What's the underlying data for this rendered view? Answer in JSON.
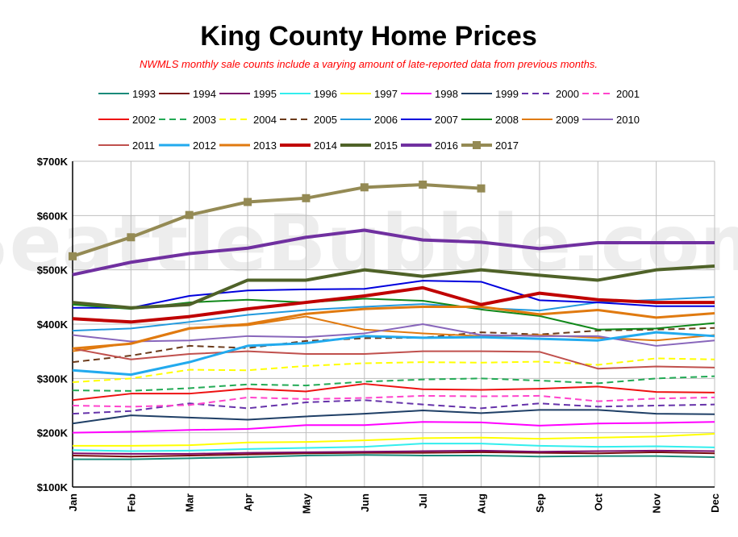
{
  "chart_data": {
    "type": "line",
    "title": "King County Home Prices",
    "subtitle": "NWMLS monthly sale counts include a varying amount of late-reported  data  from previous months.",
    "watermark": "SeattleBubble.com",
    "categories": [
      "Jan",
      "Feb",
      "Mar",
      "Apr",
      "May",
      "Jun",
      "Jul",
      "Aug",
      "Sep",
      "Oct",
      "Nov",
      "Dec"
    ],
    "ylim": [
      100000,
      700000
    ],
    "yticks": [
      {
        "value": 100000,
        "label": "$100K"
      },
      {
        "value": 200000,
        "label": "$200K"
      },
      {
        "value": 300000,
        "label": "$300K"
      },
      {
        "value": 400000,
        "label": "$400K"
      },
      {
        "value": 500000,
        "label": "$500K"
      },
      {
        "value": 600000,
        "label": "$600K"
      },
      {
        "value": 700000,
        "label": "$700K"
      }
    ],
    "grid": true,
    "legend_position": "top",
    "series": [
      {
        "name": "1993",
        "color": "#1a8a7a",
        "dash": false,
        "width": 2,
        "values": [
          151000,
          151000,
          153000,
          155000,
          158000,
          159000,
          158000,
          158000,
          156000,
          157000,
          157000,
          155000
        ]
      },
      {
        "name": "1994",
        "color": "#7a1010",
        "dash": false,
        "width": 2,
        "values": [
          158000,
          156000,
          158000,
          160000,
          162000,
          163000,
          163000,
          164000,
          163000,
          162000,
          164000,
          162000
        ]
      },
      {
        "name": "1995",
        "color": "#7a0a6a",
        "dash": false,
        "width": 2,
        "values": [
          162000,
          161000,
          161000,
          163000,
          164000,
          165000,
          166000,
          167000,
          165000,
          166000,
          167000,
          166000
        ]
      },
      {
        "name": "1996",
        "color": "#33eeee",
        "dash": false,
        "width": 2,
        "values": [
          168000,
          166000,
          167000,
          170000,
          172000,
          174000,
          180000,
          180000,
          176000,
          174000,
          175000,
          173000
        ]
      },
      {
        "name": "1997",
        "color": "#ffff00",
        "dash": false,
        "width": 2,
        "values": [
          176000,
          176000,
          177000,
          182000,
          183000,
          186000,
          190000,
          191000,
          189000,
          191000,
          193000,
          198000
        ]
      },
      {
        "name": "1998",
        "color": "#ff00ff",
        "dash": false,
        "width": 2,
        "values": [
          200000,
          202000,
          205000,
          207000,
          214000,
          214000,
          220000,
          219000,
          213000,
          217000,
          218000,
          220000
        ]
      },
      {
        "name": "1999",
        "color": "#1f3f66",
        "dash": false,
        "width": 2,
        "values": [
          217000,
          232000,
          228000,
          224000,
          230000,
          235000,
          241000,
          236000,
          242000,
          242000,
          235000,
          234000
        ]
      },
      {
        "name": "2000",
        "color": "#6633aa",
        "dash": true,
        "width": 2,
        "values": [
          235000,
          240000,
          254000,
          245000,
          256000,
          260000,
          252000,
          245000,
          254000,
          248000,
          250000,
          252000
        ]
      },
      {
        "name": "2001",
        "color": "#ff44cc",
        "dash": true,
        "width": 2,
        "values": [
          250000,
          248000,
          251000,
          265000,
          262000,
          264000,
          268000,
          267000,
          268000,
          258000,
          263000,
          265000
        ]
      },
      {
        "name": "2002",
        "color": "#ee1111",
        "dash": false,
        "width": 2,
        "values": [
          260000,
          272000,
          272000,
          281000,
          276000,
          290000,
          280000,
          279000,
          281000,
          285000,
          275000,
          274000
        ]
      },
      {
        "name": "2003",
        "color": "#22aa55",
        "dash": true,
        "width": 2,
        "values": [
          278000,
          277000,
          282000,
          289000,
          287000,
          294000,
          298000,
          300000,
          296000,
          291000,
          300000,
          304000
        ]
      },
      {
        "name": "2004",
        "color": "#ffff00",
        "dash": true,
        "width": 2,
        "values": [
          293000,
          300000,
          316000,
          315000,
          323000,
          328000,
          330000,
          329000,
          331000,
          325000,
          337000,
          335000
        ]
      },
      {
        "name": "2005",
        "color": "#6b3a1a",
        "dash": true,
        "width": 2,
        "values": [
          330000,
          342000,
          360000,
          356000,
          369000,
          374000,
          375000,
          385000,
          381000,
          388000,
          390000,
          393000
        ]
      },
      {
        "name": "2006",
        "color": "#2299dd",
        "dash": false,
        "width": 2,
        "values": [
          388000,
          392000,
          404000,
          417000,
          426000,
          432000,
          437000,
          430000,
          425000,
          440000,
          445000,
          450000
        ]
      },
      {
        "name": "2007",
        "color": "#0000dd",
        "dash": false,
        "width": 2,
        "values": [
          430000,
          430000,
          452000,
          462000,
          464000,
          465000,
          480000,
          478000,
          444000,
          440000,
          433000,
          433000
        ]
      },
      {
        "name": "2008",
        "color": "#11881a",
        "dash": false,
        "width": 2,
        "values": [
          436000,
          428000,
          440000,
          445000,
          440000,
          447000,
          443000,
          427000,
          415000,
          390000,
          392000,
          402000
        ]
      },
      {
        "name": "2009",
        "color": "#e07a10",
        "dash": false,
        "width": 2,
        "values": [
          350000,
          365000,
          393000,
          398000,
          414000,
          390000,
          383000,
          378000,
          380000,
          375000,
          370000,
          380000
        ]
      },
      {
        "name": "2010",
        "color": "#8866bb",
        "dash": false,
        "width": 2,
        "values": [
          380000,
          368000,
          370000,
          378000,
          376000,
          383000,
          400000,
          380000,
          378000,
          378000,
          360000,
          370000
        ]
      },
      {
        "name": "2011",
        "color": "#c0504d",
        "dash": false,
        "width": 2,
        "values": [
          355000,
          335000,
          345000,
          350000,
          345000,
          345000,
          350000,
          350000,
          349000,
          318000,
          322000,
          320000
        ]
      },
      {
        "name": "2012",
        "color": "#22aaee",
        "dash": false,
        "width": 3,
        "values": [
          315000,
          307000,
          330000,
          360000,
          365000,
          378000,
          375000,
          376000,
          373000,
          370000,
          385000,
          378000
        ]
      },
      {
        "name": "2013",
        "color": "#e07a10",
        "dash": false,
        "width": 3,
        "values": [
          355000,
          364000,
          392000,
          400000,
          419000,
          428000,
          432000,
          432000,
          418000,
          426000,
          412000,
          420000
        ]
      },
      {
        "name": "2014",
        "color": "#c00000",
        "dash": false,
        "width": 4,
        "values": [
          410000,
          404000,
          414000,
          428000,
          440000,
          452000,
          467000,
          436000,
          457000,
          445000,
          440000,
          440000
        ]
      },
      {
        "name": "2015",
        "color": "#4f6228",
        "dash": false,
        "width": 4,
        "values": [
          440000,
          430000,
          436000,
          481000,
          481000,
          500000,
          488000,
          500000,
          490000,
          481000,
          500000,
          507000
        ]
      },
      {
        "name": "2016",
        "color": "#7030a0",
        "dash": false,
        "width": 4,
        "values": [
          491000,
          514000,
          530000,
          540000,
          560000,
          573000,
          555000,
          551000,
          539000,
          550000,
          550000,
          550000
        ]
      },
      {
        "name": "2017",
        "color": "#948a54",
        "dash": false,
        "width": 4,
        "markers": true,
        "values": [
          525000,
          560000,
          601000,
          625000,
          632000,
          652000,
          657000,
          650000,
          null,
          null,
          null,
          null
        ]
      }
    ]
  }
}
